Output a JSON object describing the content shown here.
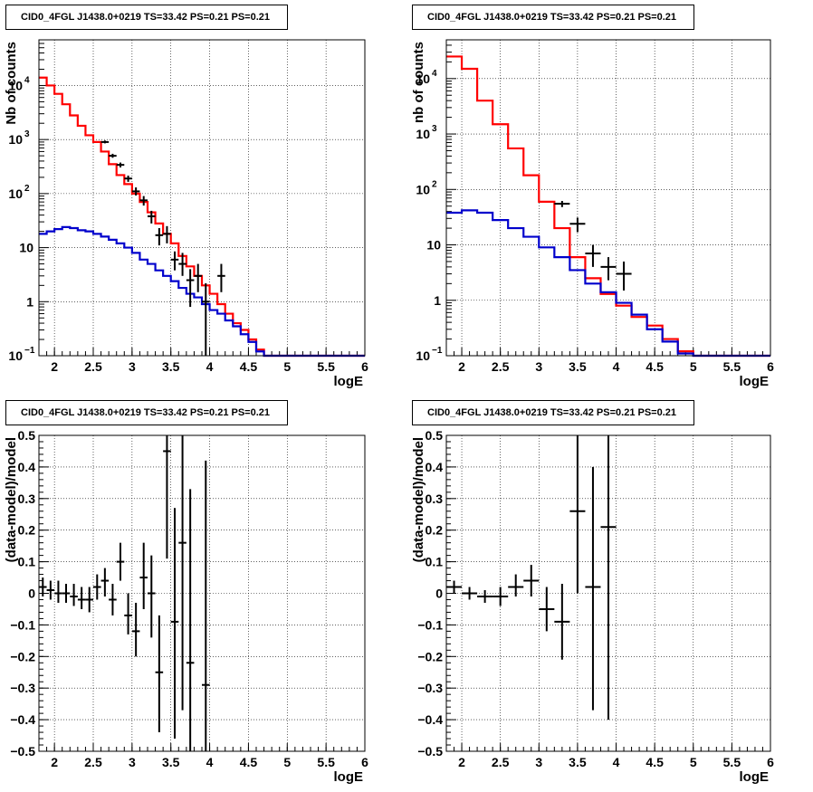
{
  "colors": {
    "data": "#000000",
    "model_total": "#ff0000",
    "model_bkg": "#0000cc",
    "grid": "#000000"
  },
  "chart_data": [
    {
      "type": "step-histogram",
      "title": "CID0_4FGL J1438.0+0219 TS=33.42 PS=0.21 PS=0.21",
      "xlabel": "logE",
      "ylabel": "Nb of counts",
      "xlim": [
        1.8,
        6
      ],
      "ylim": [
        0.1,
        70000
      ],
      "logy": true,
      "grid": true,
      "xticks": [
        "2",
        "2.5",
        "3",
        "3.5",
        "4",
        "4.5",
        "5",
        "5.5",
        "6"
      ],
      "yticks": [
        {
          "v": 0.1,
          "base": "10",
          "exp": "−1"
        },
        {
          "v": 1,
          "base": "1",
          "exp": ""
        },
        {
          "v": 10,
          "base": "10",
          "exp": ""
        },
        {
          "v": 100,
          "base": "10",
          "exp": "2"
        },
        {
          "v": 1000,
          "base": "10",
          "exp": "3"
        },
        {
          "v": 10000,
          "base": "10",
          "exp": "4"
        }
      ],
      "bin_edges": [
        1.8,
        1.9,
        2.0,
        2.1,
        2.2,
        2.3,
        2.4,
        2.5,
        2.6,
        2.7,
        2.8,
        2.9,
        3.0,
        3.1,
        3.2,
        3.3,
        3.4,
        3.5,
        3.6,
        3.7,
        3.8,
        3.9,
        4.0,
        4.1,
        4.2,
        4.3,
        4.4,
        4.5,
        4.6,
        4.7,
        4.8,
        4.9,
        5.0,
        5.1,
        5.2,
        5.3,
        5.4,
        5.5,
        5.6,
        5.7,
        5.8,
        5.9,
        6.0
      ],
      "series": [
        {
          "name": "model_total",
          "color": "#ff0000",
          "values": [
            14000,
            10000,
            7000,
            4500,
            2800,
            1800,
            1200,
            900,
            600,
            350,
            220,
            150,
            100,
            70,
            45,
            28,
            18,
            12,
            7,
            4.5,
            3,
            2,
            1.4,
            0.9,
            0.6,
            0.4,
            0.3,
            0.2,
            0.13,
            0.1,
            0.1,
            0.1,
            0.1,
            0.1,
            0.1,
            0.1,
            0.1,
            0.1,
            0.1,
            0.1,
            0.1,
            0.1
          ]
        },
        {
          "name": "model_bkg",
          "color": "#0000cc",
          "values": [
            18,
            20,
            22,
            24,
            23,
            21,
            20,
            18,
            16,
            14,
            12,
            10,
            8,
            6,
            5,
            3.8,
            3,
            2.4,
            1.8,
            1.4,
            1.2,
            0.9,
            0.7,
            0.6,
            0.45,
            0.35,
            0.25,
            0.18,
            0.12,
            0.1,
            0.1,
            0.1,
            0.1,
            0.1,
            0.1,
            0.1,
            0.1,
            0.1,
            0.1,
            0.1,
            0.1,
            0.1
          ]
        }
      ],
      "points": [
        {
          "x": 2.65,
          "y": 900,
          "lo": 850,
          "hi": 960
        },
        {
          "x": 2.75,
          "y": 500,
          "lo": 460,
          "hi": 545
        },
        {
          "x": 2.85,
          "y": 340,
          "lo": 305,
          "hi": 375
        },
        {
          "x": 2.95,
          "y": 190,
          "lo": 165,
          "hi": 215
        },
        {
          "x": 3.05,
          "y": 110,
          "lo": 92,
          "hi": 130
        },
        {
          "x": 3.15,
          "y": 75,
          "lo": 60,
          "hi": 90
        },
        {
          "x": 3.25,
          "y": 38,
          "lo": 28,
          "hi": 48
        },
        {
          "x": 3.35,
          "y": 17,
          "lo": 11,
          "hi": 23
        },
        {
          "x": 3.45,
          "y": 18,
          "lo": 12,
          "hi": 25
        },
        {
          "x": 3.55,
          "y": 6,
          "lo": 3.8,
          "hi": 8.5
        },
        {
          "x": 3.65,
          "y": 5,
          "lo": 3,
          "hi": 8
        },
        {
          "x": 3.75,
          "y": 2.5,
          "lo": 0.8,
          "hi": 4
        },
        {
          "x": 3.85,
          "y": 3,
          "lo": 1.5,
          "hi": 5
        },
        {
          "x": 3.95,
          "y": 1,
          "lo": 0.1,
          "hi": 2.2
        },
        {
          "x": 4.15,
          "y": 3,
          "lo": 1.5,
          "hi": 5
        }
      ]
    },
    {
      "type": "step-histogram",
      "title": "CID0_4FGL J1438.0+0219 TS=33.42 PS=0.21 PS=0.21",
      "xlabel": "logE",
      "ylabel": "nb of counts",
      "xlim": [
        1.8,
        6
      ],
      "ylim": [
        0.1,
        50000
      ],
      "logy": true,
      "grid": true,
      "xticks": [
        "2",
        "2.5",
        "3",
        "3.5",
        "4",
        "4.5",
        "5",
        "5.5",
        "6"
      ],
      "yticks": [
        {
          "v": 0.1,
          "base": "10",
          "exp": "−1"
        },
        {
          "v": 1,
          "base": "1",
          "exp": ""
        },
        {
          "v": 10,
          "base": "10",
          "exp": ""
        },
        {
          "v": 100,
          "base": "10",
          "exp": "2"
        },
        {
          "v": 1000,
          "base": "10",
          "exp": "3"
        },
        {
          "v": 10000,
          "base": "10",
          "exp": "4"
        }
      ],
      "bin_edges": [
        1.8,
        2.0,
        2.2,
        2.4,
        2.6,
        2.8,
        3.0,
        3.2,
        3.4,
        3.6,
        3.8,
        4.0,
        4.2,
        4.4,
        4.6,
        4.8,
        5.0,
        5.2,
        5.4,
        5.6,
        5.8,
        6.0
      ],
      "series": [
        {
          "name": "model_total",
          "color": "#ff0000",
          "values": [
            25000,
            15000,
            4000,
            1500,
            550,
            180,
            60,
            20,
            6,
            2.5,
            1.3,
            0.8,
            0.5,
            0.35,
            0.2,
            0.12,
            0.1,
            0.1,
            0.1,
            0.1,
            0.1
          ]
        },
        {
          "name": "model_bkg",
          "color": "#0000cc",
          "values": [
            38,
            42,
            38,
            28,
            20,
            14,
            9,
            6,
            3.5,
            2,
            1.4,
            0.9,
            0.55,
            0.3,
            0.18,
            0.11,
            0.1,
            0.1,
            0.1,
            0.1,
            0.1
          ]
        }
      ],
      "points": [
        {
          "x": 3.3,
          "y": 55,
          "lo": 48,
          "hi": 62
        },
        {
          "x": 3.5,
          "y": 24,
          "lo": 17,
          "hi": 31
        },
        {
          "x": 3.7,
          "y": 7,
          "lo": 4,
          "hi": 10
        },
        {
          "x": 3.9,
          "y": 4,
          "lo": 2.3,
          "hi": 6
        },
        {
          "x": 4.1,
          "y": 3,
          "lo": 1.5,
          "hi": 5
        }
      ]
    },
    {
      "type": "residuals",
      "title": "CID0_4FGL J1438.0+0219 TS=33.42 PS=0.21 PS=0.21",
      "xlabel": "logE",
      "ylabel": "(data-model)/model",
      "xlim": [
        1.8,
        6
      ],
      "ylim": [
        -0.5,
        0.5
      ],
      "grid": true,
      "xticks": [
        "2",
        "2.5",
        "3",
        "3.5",
        "4",
        "4.5",
        "5",
        "5.5",
        "6"
      ],
      "yticks": [
        "-0.5",
        "-0.4",
        "-0.3",
        "-0.2",
        "-0.1",
        "0",
        "0.1",
        "0.2",
        "0.3",
        "0.4",
        "0.5"
      ],
      "points": [
        {
          "x": 1.85,
          "y": 0.02,
          "lo": -0.01,
          "hi": 0.05
        },
        {
          "x": 1.95,
          "y": 0.01,
          "lo": -0.02,
          "hi": 0.04
        },
        {
          "x": 2.05,
          "y": 0.0,
          "lo": -0.03,
          "hi": 0.04
        },
        {
          "x": 2.15,
          "y": 0.0,
          "lo": -0.03,
          "hi": 0.03
        },
        {
          "x": 2.25,
          "y": -0.01,
          "lo": -0.04,
          "hi": 0.03
        },
        {
          "x": 2.35,
          "y": -0.02,
          "lo": -0.05,
          "hi": 0.02
        },
        {
          "x": 2.45,
          "y": -0.02,
          "lo": -0.06,
          "hi": 0.02
        },
        {
          "x": 2.55,
          "y": 0.02,
          "lo": -0.02,
          "hi": 0.06
        },
        {
          "x": 2.65,
          "y": 0.04,
          "lo": -0.01,
          "hi": 0.08
        },
        {
          "x": 2.75,
          "y": -0.02,
          "lo": -0.07,
          "hi": 0.03
        },
        {
          "x": 2.85,
          "y": 0.1,
          "lo": 0.04,
          "hi": 0.16
        },
        {
          "x": 2.95,
          "y": -0.07,
          "lo": -0.13,
          "hi": 0.0
        },
        {
          "x": 3.05,
          "y": -0.12,
          "lo": -0.2,
          "hi": -0.03
        },
        {
          "x": 3.15,
          "y": 0.05,
          "lo": -0.05,
          "hi": 0.16
        },
        {
          "x": 3.25,
          "y": 0.0,
          "lo": -0.14,
          "hi": 0.12
        },
        {
          "x": 3.35,
          "y": -0.25,
          "lo": -0.44,
          "hi": -0.07
        },
        {
          "x": 3.45,
          "y": 0.45,
          "lo": 0.11,
          "hi": 0.5
        },
        {
          "x": 3.55,
          "y": -0.09,
          "lo": -0.46,
          "hi": 0.27
        },
        {
          "x": 3.65,
          "y": 0.16,
          "lo": -0.37,
          "hi": 0.5
        },
        {
          "x": 3.75,
          "y": -0.22,
          "lo": -0.5,
          "hi": 0.33
        },
        {
          "x": 3.95,
          "y": -0.29,
          "lo": -0.5,
          "hi": 0.42
        }
      ]
    },
    {
      "type": "residuals",
      "title": "CID0_4FGL J1438.0+0219 TS=33.42 PS=0.21 PS=0.21",
      "xlabel": "logE",
      "ylabel": "(data-model)/model",
      "xlim": [
        1.8,
        6
      ],
      "ylim": [
        -0.5,
        0.5
      ],
      "grid": true,
      "xticks": [
        "2",
        "2.5",
        "3",
        "3.5",
        "4",
        "4.5",
        "5",
        "5.5",
        "6"
      ],
      "yticks": [
        "-0.5",
        "-0.4",
        "-0.3",
        "-0.2",
        "-0.1",
        "0",
        "0.1",
        "0.2",
        "0.3",
        "0.4",
        "0.5"
      ],
      "points": [
        {
          "x": 1.9,
          "y": 0.02,
          "lo": 0.0,
          "hi": 0.04
        },
        {
          "x": 2.1,
          "y": 0.0,
          "lo": -0.02,
          "hi": 0.02
        },
        {
          "x": 2.3,
          "y": -0.01,
          "lo": -0.03,
          "hi": 0.01
        },
        {
          "x": 2.5,
          "y": -0.01,
          "lo": -0.04,
          "hi": 0.02
        },
        {
          "x": 2.7,
          "y": 0.02,
          "lo": -0.01,
          "hi": 0.06
        },
        {
          "x": 2.9,
          "y": 0.04,
          "lo": -0.01,
          "hi": 0.09
        },
        {
          "x": 3.1,
          "y": -0.05,
          "lo": -0.12,
          "hi": 0.02
        },
        {
          "x": 3.3,
          "y": -0.09,
          "lo": -0.21,
          "hi": 0.03
        },
        {
          "x": 3.5,
          "y": 0.26,
          "lo": 0.0,
          "hi": 0.5
        },
        {
          "x": 3.7,
          "y": 0.02,
          "lo": -0.37,
          "hi": 0.4
        },
        {
          "x": 3.9,
          "y": 0.21,
          "lo": -0.4,
          "hi": 0.5
        }
      ]
    }
  ]
}
